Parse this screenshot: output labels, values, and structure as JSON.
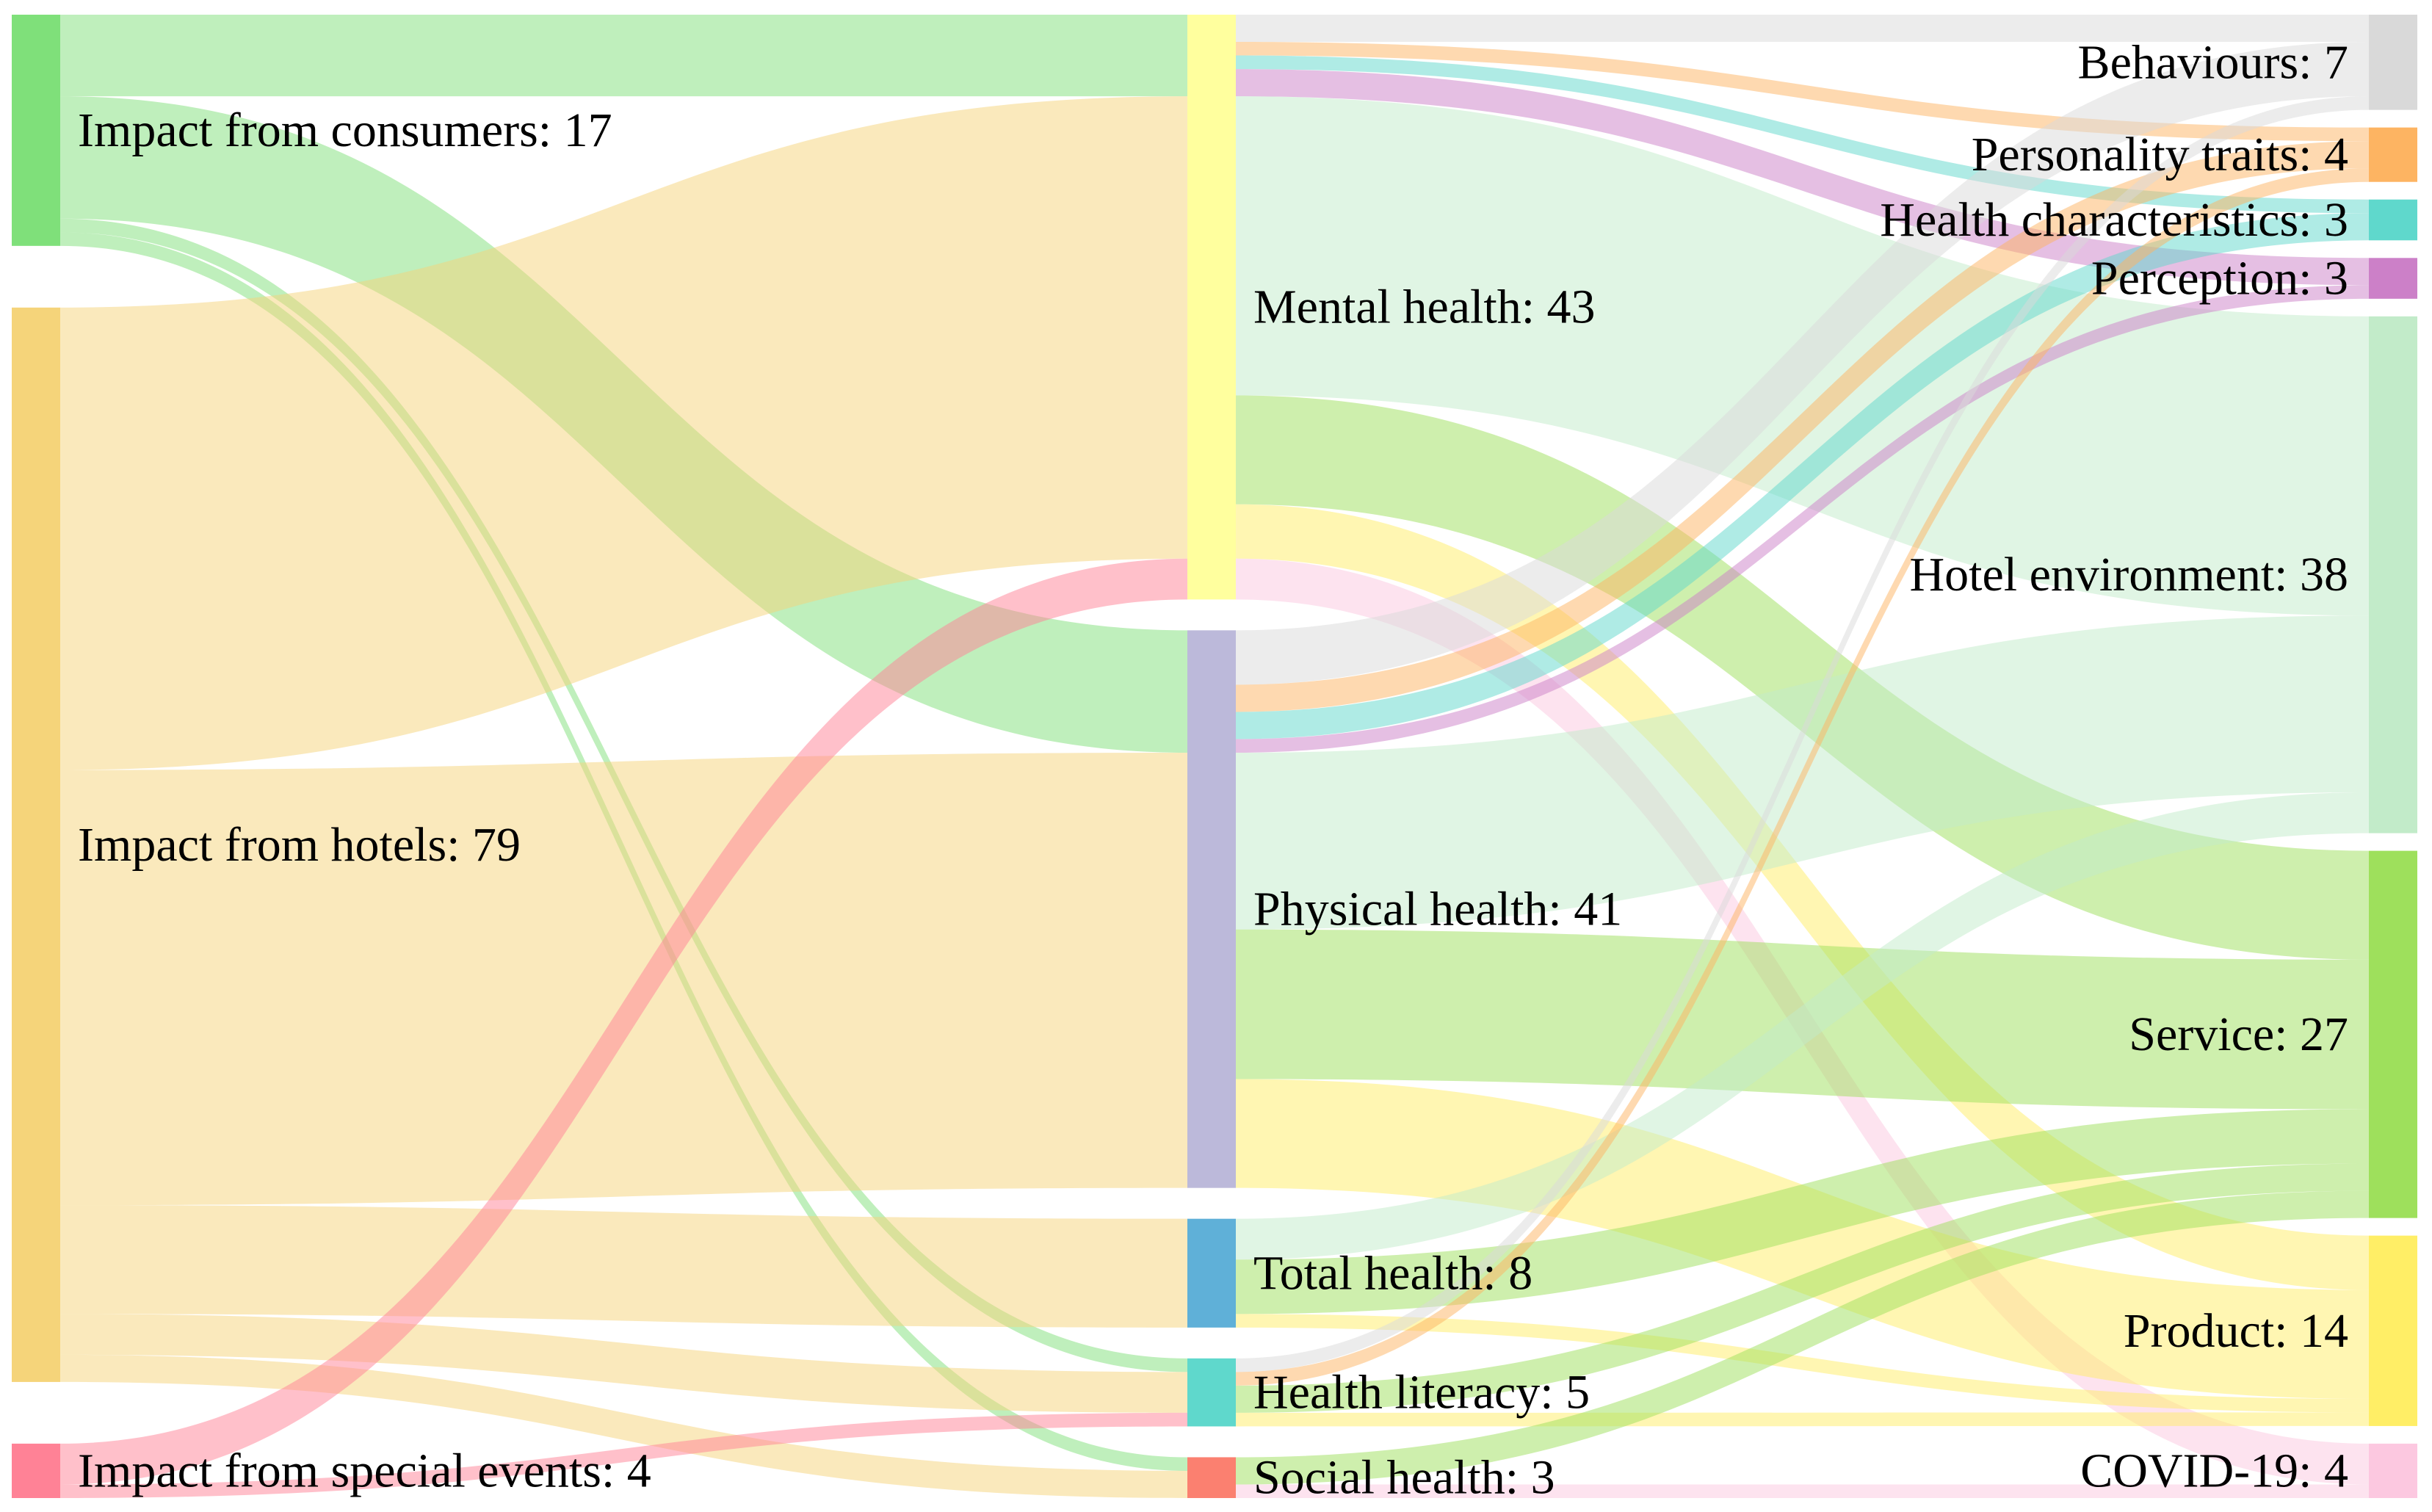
{
  "chart_data": {
    "type": "sankey",
    "title": "",
    "columns": [
      [
        "Impact from consumers",
        "Impact from hotels",
        "Impact from special events"
      ],
      [
        "Mental health",
        "Physical health",
        "Total health",
        "Health literacy",
        "Social health"
      ],
      [
        "Behaviours",
        "Personality traits",
        "Health characteristics",
        "Perception",
        "Hotel environment",
        "Service",
        "Product",
        "COVID-19"
      ]
    ],
    "nodes": [
      {
        "id": "consumers",
        "name": "Impact from consumers",
        "value": 17,
        "label": "Impact from consumers: 17",
        "color": "#7fe07a",
        "column": 0
      },
      {
        "id": "hotels",
        "name": "Impact from hotels",
        "value": 79,
        "label": "Impact from hotels: 79",
        "color": "#f5d47a",
        "column": 0
      },
      {
        "id": "events",
        "name": "Impact from special events",
        "value": 4,
        "label": "Impact from special events: 4",
        "color": "#ff8296",
        "column": 0
      },
      {
        "id": "mental",
        "name": "Mental health",
        "value": 43,
        "label": "Mental health: 43",
        "color": "#ffff9e",
        "column": 1
      },
      {
        "id": "physical",
        "name": "Physical health",
        "value": 41,
        "label": "Physical health: 41",
        "color": "#bcb9da",
        "column": 1
      },
      {
        "id": "total",
        "name": "Total health",
        "value": 8,
        "label": "Total health: 8",
        "color": "#5fb0d8",
        "column": 1
      },
      {
        "id": "literacy",
        "name": "Health literacy",
        "value": 5,
        "label": "Health literacy: 5",
        "color": "#5fd8cc",
        "column": 1
      },
      {
        "id": "social",
        "name": "Social health",
        "value": 3,
        "label": "Social health: 3",
        "color": "#fb8070",
        "column": 1
      },
      {
        "id": "behaviours",
        "name": "Behaviours",
        "value": 7,
        "label": "Behaviours: 7",
        "color": "#d9d9d9",
        "column": 2
      },
      {
        "id": "personality",
        "name": "Personality traits",
        "value": 4,
        "label": "Personality traits: 4",
        "color": "#fdb462",
        "column": 2
      },
      {
        "id": "healthchar",
        "name": "Health characteristics",
        "value": 3,
        "label": "Health characteristics: 3",
        "color": "#5fd8cc",
        "column": 2
      },
      {
        "id": "perception",
        "name": "Perception",
        "value": 3,
        "label": "Perception: 3",
        "color": "#cc80c8",
        "column": 2
      },
      {
        "id": "hotelenv",
        "name": "Hotel environment",
        "value": 38,
        "label": "Hotel environment: 38",
        "color": "#c2ebc9",
        "column": 2
      },
      {
        "id": "service",
        "name": "Service",
        "value": 27,
        "label": "Service: 27",
        "color": "#9ee05c",
        "column": 2
      },
      {
        "id": "product",
        "name": "Product",
        "value": 14,
        "label": "Product: 14",
        "color": "#ffee66",
        "column": 2
      },
      {
        "id": "covid",
        "name": "COVID-19",
        "value": 4,
        "label": "COVID-19: 4",
        "color": "#fcc8e0",
        "column": 2
      }
    ],
    "links": [
      {
        "source": "consumers",
        "target": "mental",
        "value": 6,
        "color": "#7fe07a"
      },
      {
        "source": "consumers",
        "target": "physical",
        "value": 9,
        "color": "#7fe07a"
      },
      {
        "source": "consumers",
        "target": "literacy",
        "value": 1,
        "color": "#7fe07a"
      },
      {
        "source": "consumers",
        "target": "social",
        "value": 1,
        "color": "#7fe07a"
      },
      {
        "source": "hotels",
        "target": "mental",
        "value": 34,
        "color": "#f5d47a"
      },
      {
        "source": "hotels",
        "target": "physical",
        "value": 32,
        "color": "#f5d47a"
      },
      {
        "source": "hotels",
        "target": "total",
        "value": 8,
        "color": "#f5d47a"
      },
      {
        "source": "hotels",
        "target": "literacy",
        "value": 3,
        "color": "#f5d47a"
      },
      {
        "source": "hotels",
        "target": "social",
        "value": 2,
        "color": "#f5d47a"
      },
      {
        "source": "events",
        "target": "mental",
        "value": 3,
        "color": "#ff8296"
      },
      {
        "source": "events",
        "target": "literacy",
        "value": 1,
        "color": "#ff8296"
      },
      {
        "source": "mental",
        "target": "personality",
        "value": 1,
        "color": "#fdb462"
      },
      {
        "source": "mental",
        "target": "healthchar",
        "value": 1,
        "color": "#5fd8cc"
      },
      {
        "source": "mental",
        "target": "perception",
        "value": 2,
        "color": "#cc80c8"
      },
      {
        "source": "mental",
        "target": "hotelenv",
        "value": 22,
        "color": "#c2ebc9"
      },
      {
        "source": "mental",
        "target": "service",
        "value": 8,
        "color": "#9ee05c"
      },
      {
        "source": "mental",
        "target": "product",
        "value": 4,
        "color": "#ffee66"
      },
      {
        "source": "mental",
        "target": "covid",
        "value": 3,
        "color": "#fcc8e0"
      },
      {
        "source": "mental",
        "target": "behaviours",
        "value": 2,
        "color": "#d9d9d9"
      },
      {
        "source": "physical",
        "target": "behaviours",
        "value": 4,
        "color": "#d9d9d9"
      },
      {
        "source": "physical",
        "target": "personality",
        "value": 2,
        "color": "#fdb462"
      },
      {
        "source": "physical",
        "target": "healthchar",
        "value": 2,
        "color": "#5fd8cc"
      },
      {
        "source": "physical",
        "target": "perception",
        "value": 1,
        "color": "#cc80c8"
      },
      {
        "source": "physical",
        "target": "hotelenv",
        "value": 13,
        "color": "#c2ebc9"
      },
      {
        "source": "physical",
        "target": "service",
        "value": 11,
        "color": "#9ee05c"
      },
      {
        "source": "physical",
        "target": "product",
        "value": 8,
        "color": "#ffee66"
      },
      {
        "source": "total",
        "target": "hotelenv",
        "value": 3,
        "color": "#c2ebc9"
      },
      {
        "source": "total",
        "target": "service",
        "value": 4,
        "color": "#9ee05c"
      },
      {
        "source": "total",
        "target": "product",
        "value": 1,
        "color": "#ffee66"
      },
      {
        "source": "literacy",
        "target": "personality",
        "value": 1,
        "color": "#fdb462"
      },
      {
        "source": "literacy",
        "target": "behaviours",
        "value": 1,
        "color": "#d9d9d9"
      },
      {
        "source": "literacy",
        "target": "service",
        "value": 2,
        "color": "#9ee05c"
      },
      {
        "source": "literacy",
        "target": "product",
        "value": 1,
        "color": "#ffee66"
      },
      {
        "source": "social",
        "target": "service",
        "value": 2,
        "color": "#9ee05c"
      },
      {
        "source": "social",
        "target": "covid",
        "value": 1,
        "color": "#fcc8e0"
      }
    ]
  }
}
